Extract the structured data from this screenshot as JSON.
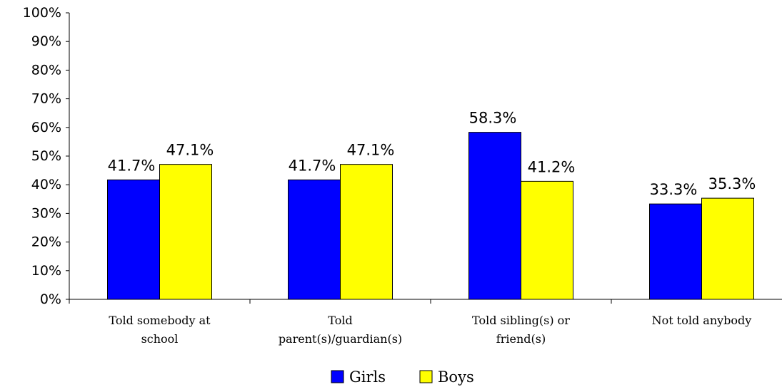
{
  "chart_data": {
    "type": "bar",
    "categories": [
      [
        "Told somebody at",
        "school"
      ],
      [
        "Told",
        "parent(s)/guardian(s)"
      ],
      [
        "Told sibling(s) or",
        "friend(s)"
      ],
      [
        "Not told anybody"
      ]
    ],
    "series": [
      {
        "name": "Girls",
        "color": "#0000FF",
        "values": [
          41.7,
          41.7,
          58.3,
          33.3
        ],
        "labels": [
          "41.7%",
          "41.7%",
          "58.3%",
          "33.3%"
        ]
      },
      {
        "name": "Boys",
        "color": "#FFFF00",
        "values": [
          47.1,
          47.1,
          41.2,
          35.3
        ],
        "labels": [
          "47.1%",
          "47.1%",
          "41.2%",
          "35.3%"
        ]
      }
    ],
    "ylim": [
      0,
      100
    ],
    "yticks": [
      "0%",
      "10%",
      "20%",
      "30%",
      "40%",
      "50%",
      "60%",
      "70%",
      "80%",
      "90%",
      "100%"
    ],
    "grid": false,
    "legend_position": "bottom"
  }
}
